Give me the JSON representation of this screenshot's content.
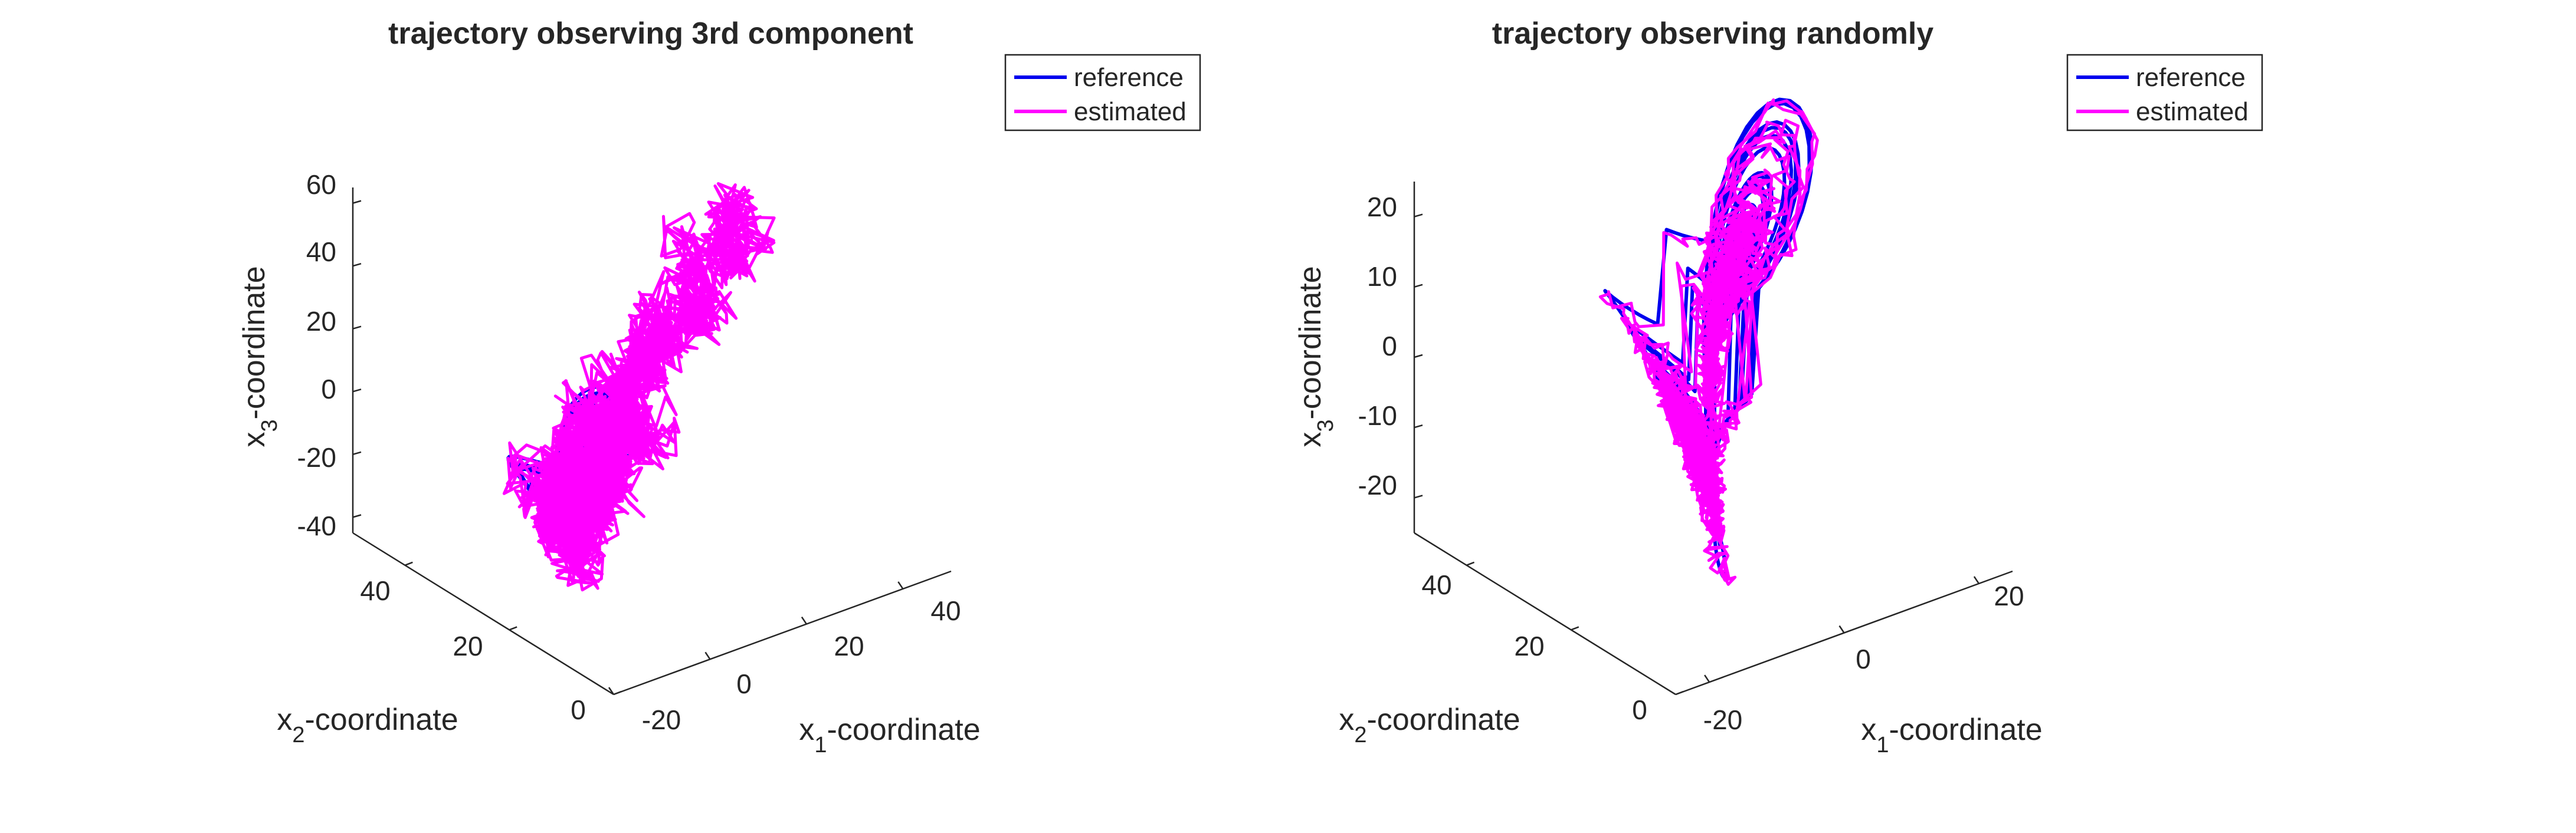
{
  "chart_data": [
    {
      "type": "line",
      "subtype": "3d-trajectory",
      "title": "trajectory observing 3rd component",
      "xlabel": "x_1-coordinate",
      "ylabel": "x_2-coordinate",
      "zlabel": "x_3-coordinate",
      "xlim": [
        -20,
        50
      ],
      "ylim": [
        0,
        50
      ],
      "zlim": [
        -45,
        65
      ],
      "xticks": [
        "-20",
        "0",
        "20",
        "40"
      ],
      "yticks": [
        "0",
        "20",
        "40"
      ],
      "zticks": [
        "-40",
        "-20",
        "0",
        "20",
        "40",
        "60"
      ],
      "legend_position": "top-right",
      "series": [
        {
          "name": "reference",
          "color": "#0000ee",
          "shape": "Lorenz attractor: two lobes centred near (-8,-8,-25) and (8,8,-25), x in [-18,18], x3 in [-45,-5]"
        },
        {
          "name": "estimated",
          "color": "#ff00ff",
          "shape": "noisy trajectory, left lobe near the reference then drifting along x1 from 0 to 30 and x3 rising from -35 to about 60"
        }
      ]
    },
    {
      "type": "line",
      "subtype": "3d-trajectory",
      "title": "trajectory observing randomly",
      "xlabel": "x_1-coordinate",
      "ylabel": "x_2-coordinate",
      "zlabel": "x_3-coordinate",
      "xlim": [
        -25,
        25
      ],
      "ylim": [
        0,
        50
      ],
      "zlim": [
        -25,
        25
      ],
      "xticks": [
        "-20",
        "0",
        "20"
      ],
      "yticks": [
        "0",
        "20",
        "40"
      ],
      "zticks": [
        "-20",
        "-10",
        "0",
        "10",
        "20"
      ],
      "legend_position": "top-right",
      "series": [
        {
          "name": "reference",
          "color": "#0000ee",
          "shape": "Lorenz attractor: two lobes centred near (-8,-8,-15) and (8,8,15)"
        },
        {
          "name": "estimated",
          "color": "#ff00ff",
          "shape": "noisy trajectory closely following the reference lobes"
        }
      ]
    }
  ]
}
